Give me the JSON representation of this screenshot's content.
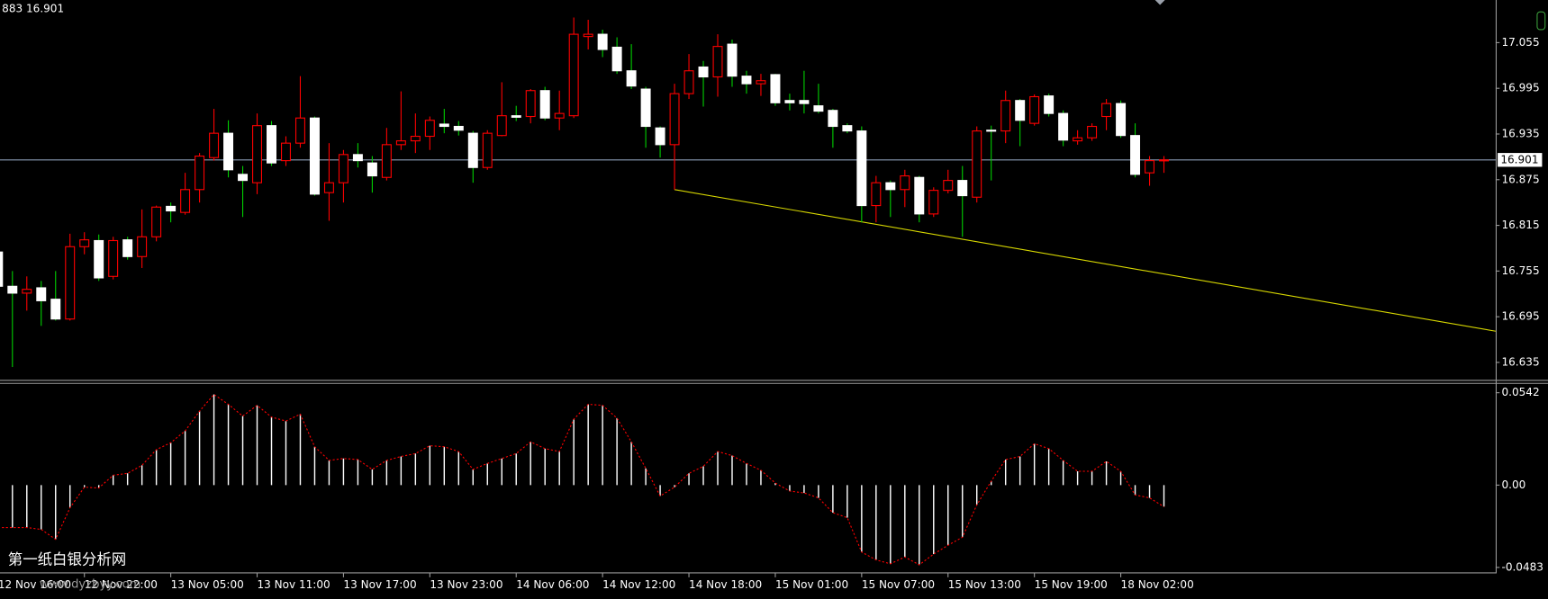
{
  "chart_data": [
    {
      "type": "candlestick",
      "header": "883 16.901",
      "categories": [
        "12 Nov 16:00",
        null,
        null,
        null,
        null,
        null,
        "12 Nov 22:00",
        null,
        null,
        null,
        null,
        null,
        "13 Nov 05:00",
        null,
        null,
        null,
        null,
        null,
        "13 Nov 11:00",
        null,
        null,
        null,
        null,
        null,
        "13 Nov 17:00",
        null,
        null,
        null,
        null,
        null,
        "13 Nov 23:00",
        null,
        null,
        null,
        null,
        null,
        "14 Nov 06:00",
        null,
        null,
        null,
        null,
        null,
        "14 Nov 12:00",
        null,
        null,
        null,
        null,
        null,
        "14 Nov 18:00",
        null,
        null,
        null,
        null,
        null,
        "15 Nov 01:00",
        null,
        null,
        null,
        null,
        null,
        "15 Nov 07:00",
        null,
        null,
        null,
        null,
        null,
        "15 Nov 13:00",
        null,
        null,
        null,
        null,
        null,
        "15 Nov 19:00",
        null,
        null,
        null,
        null,
        null,
        "18 Nov 02:00",
        null,
        null,
        null
      ],
      "open": [
        16.78,
        16.735,
        16.726,
        16.733,
        16.718,
        16.692,
        16.787,
        16.795,
        16.748,
        16.796,
        16.774,
        16.8,
        16.84,
        16.832,
        16.862,
        16.904,
        16.936,
        16.882,
        16.871,
        16.946,
        16.9,
        16.923,
        16.956,
        16.858,
        16.871,
        16.908,
        16.897,
        16.878,
        16.921,
        16.926,
        16.932,
        16.948,
        16.945,
        16.936,
        16.891,
        16.933,
        16.959,
        16.958,
        16.992,
        16.956,
        16.959,
        17.063,
        17.066,
        17.049,
        17.018,
        16.994,
        16.943,
        16.921,
        16.988,
        17.023,
        17.01,
        17.053,
        17.011,
        17.001,
        17.013,
        16.979,
        16.979,
        16.972,
        16.966,
        16.946,
        16.939,
        16.841,
        16.871,
        16.862,
        16.878,
        16.83,
        16.861,
        16.874,
        16.852,
        16.94,
        16.939,
        16.979,
        16.949,
        16.985,
        16.962,
        16.926,
        16.93,
        16.958,
        16.975,
        16.933,
        16.884,
        16.9
      ],
      "high": [
        16.787,
        16.755,
        16.748,
        16.742,
        16.755,
        16.804,
        16.806,
        16.803,
        16.8,
        16.8,
        16.836,
        16.841,
        16.845,
        16.884,
        16.91,
        16.968,
        16.953,
        16.893,
        16.962,
        16.952,
        16.932,
        17.011,
        16.958,
        16.923,
        16.914,
        16.923,
        16.906,
        16.943,
        16.991,
        16.962,
        16.958,
        16.968,
        16.952,
        16.939,
        16.94,
        17.003,
        16.972,
        16.994,
        16.997,
        16.992,
        17.088,
        17.085,
        17.072,
        17.062,
        17.053,
        16.997,
        16.945,
        17.001,
        17.04,
        17.031,
        17.066,
        17.059,
        17.018,
        17.014,
        17.014,
        16.988,
        17.018,
        17.001,
        16.968,
        16.949,
        16.945,
        16.88,
        16.874,
        16.888,
        16.88,
        16.865,
        16.888,
        16.893,
        16.945,
        16.946,
        16.992,
        16.981,
        16.987,
        16.988,
        16.966,
        16.94,
        16.949,
        16.981,
        16.979,
        16.949,
        16.906,
        16.906
      ],
      "low": [
        16.729,
        16.629,
        16.703,
        16.683,
        16.69,
        16.69,
        16.777,
        16.742,
        16.744,
        16.77,
        16.759,
        16.794,
        16.819,
        16.829,
        16.845,
        16.9,
        16.878,
        16.826,
        16.856,
        16.893,
        16.893,
        16.917,
        16.854,
        16.821,
        16.845,
        16.891,
        16.858,
        16.874,
        16.914,
        16.91,
        16.914,
        16.936,
        16.933,
        16.871,
        16.888,
        16.932,
        16.952,
        16.949,
        16.953,
        16.94,
        16.956,
        17.046,
        17.036,
        17.014,
        16.994,
        16.917,
        16.904,
        16.862,
        16.981,
        16.971,
        16.984,
        16.997,
        16.988,
        16.985,
        16.972,
        16.966,
        16.962,
        16.962,
        16.917,
        16.936,
        16.819,
        16.819,
        16.826,
        16.839,
        16.819,
        16.826,
        16.857,
        16.8,
        16.845,
        16.874,
        16.923,
        16.919,
        16.946,
        16.958,
        16.919,
        16.921,
        16.926,
        16.94,
        16.93,
        16.878,
        16.867,
        16.884
      ],
      "close": [
        16.735,
        16.726,
        16.731,
        16.716,
        16.692,
        16.787,
        16.796,
        16.746,
        16.795,
        16.774,
        16.8,
        16.839,
        16.834,
        16.862,
        16.906,
        16.936,
        16.888,
        16.874,
        16.946,
        16.897,
        16.923,
        16.956,
        16.856,
        16.871,
        16.908,
        16.9,
        16.88,
        16.921,
        16.926,
        16.932,
        16.953,
        16.945,
        16.94,
        16.891,
        16.936,
        16.959,
        16.957,
        16.992,
        16.956,
        16.962,
        17.066,
        17.066,
        17.046,
        17.018,
        16.998,
        16.945,
        16.921,
        16.988,
        17.018,
        17.01,
        17.05,
        17.011,
        17.001,
        17.005,
        16.976,
        16.976,
        16.975,
        16.965,
        16.945,
        16.939,
        16.841,
        16.871,
        16.862,
        16.88,
        16.83,
        16.861,
        16.874,
        16.854,
        16.939,
        16.939,
        16.979,
        16.953,
        16.984,
        16.962,
        16.927,
        16.93,
        16.945,
        16.975,
        16.933,
        16.882,
        16.9,
        16.901
      ],
      "ylim": [
        16.612,
        17.111
      ],
      "yticks": [
        17.055,
        16.995,
        16.935,
        16.875,
        16.815,
        16.755,
        16.695,
        16.635
      ],
      "last_price": 16.901,
      "up_color": "#ff0000",
      "down_color": "#ffffff",
      "down_wick_color": "#00d000",
      "price_line_color": "#8a9bb5",
      "trendline": {
        "start_index": 47,
        "start": 16.862,
        "end": 16.676,
        "color": "#d8d800"
      }
    },
    {
      "type": "histogram",
      "values": [
        -0.0249,
        -0.0249,
        -0.0249,
        -0.026,
        -0.0318,
        -0.0133,
        -0.0012,
        -0.0017,
        0.0058,
        0.0069,
        0.0116,
        0.0208,
        0.0249,
        0.0318,
        0.0434,
        0.0532,
        0.0474,
        0.0405,
        0.0468,
        0.0399,
        0.0376,
        0.0416,
        0.0225,
        0.0145,
        0.0156,
        0.015,
        0.0092,
        0.0145,
        0.0168,
        0.0185,
        0.0231,
        0.0225,
        0.0197,
        0.0092,
        0.0127,
        0.0156,
        0.0185,
        0.0254,
        0.0214,
        0.0197,
        0.0387,
        0.0474,
        0.0468,
        0.0393,
        0.0254,
        0.0098,
        -0.0064,
        -0.0012,
        0.0069,
        0.011,
        0.0197,
        0.0173,
        0.0127,
        0.0087,
        0.0012,
        -0.0035,
        -0.0046,
        -0.0075,
        -0.0162,
        -0.0191,
        -0.0393,
        -0.0439,
        -0.0462,
        -0.0422,
        -0.0468,
        -0.0405,
        -0.0353,
        -0.0306,
        -0.0116,
        0.0023,
        0.015,
        0.0168,
        0.0243,
        0.0214,
        0.0145,
        0.0081,
        0.0081,
        0.0139,
        0.0081,
        -0.0058,
        -0.0075,
        -0.0127
      ],
      "ylim": [
        -0.0512,
        0.0594
      ],
      "yticks": [
        0.0542,
        {
          "value": 0,
          "label": "0.00"
        },
        -0.0483
      ],
      "color": "#ffffff",
      "line_color": "#ff0000"
    }
  ],
  "watermark": {
    "title": "第一纸白银分析网",
    "url": "www.dyzbyy.com"
  }
}
